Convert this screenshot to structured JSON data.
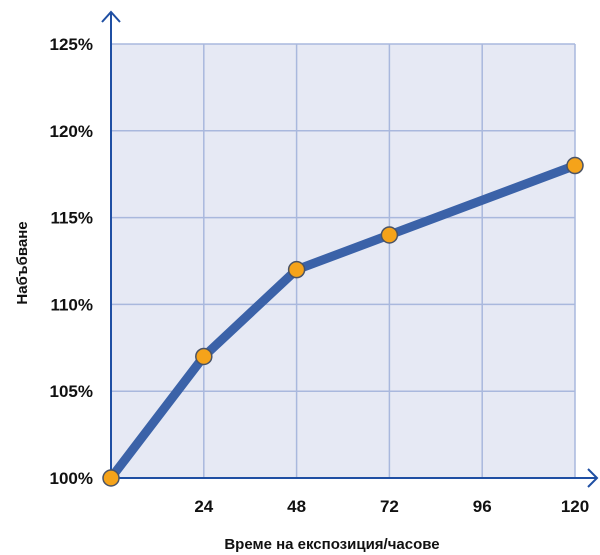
{
  "chart_data": {
    "type": "line",
    "title": "",
    "xlabel": "Време на експозиция/часове",
    "ylabel": "Набъбване",
    "x": [
      0,
      24,
      48,
      72,
      96,
      120
    ],
    "x_tick_labels": [
      "24",
      "48",
      "72",
      "96",
      "120"
    ],
    "x_ticks": [
      24,
      48,
      72,
      96,
      120
    ],
    "xlim": [
      0,
      120
    ],
    "y_tick_labels": [
      "100%",
      "105%",
      "110%",
      "115%",
      "120%",
      "125%"
    ],
    "y_ticks": [
      100,
      105,
      110,
      115,
      120,
      125
    ],
    "ylim": [
      100,
      125
    ],
    "grid": true,
    "series": [
      {
        "x": [
          0,
          24,
          48,
          72,
          120
        ],
        "values": [
          100,
          107,
          112,
          114,
          118
        ]
      }
    ],
    "colors": {
      "plot_background": "#e6e9f4",
      "grid": "#a9b8dd",
      "line": "#3b62a8",
      "marker_fill": "#f5a31a",
      "marker_stroke": "#4a5366",
      "axis": "#1f4fa3"
    }
  }
}
